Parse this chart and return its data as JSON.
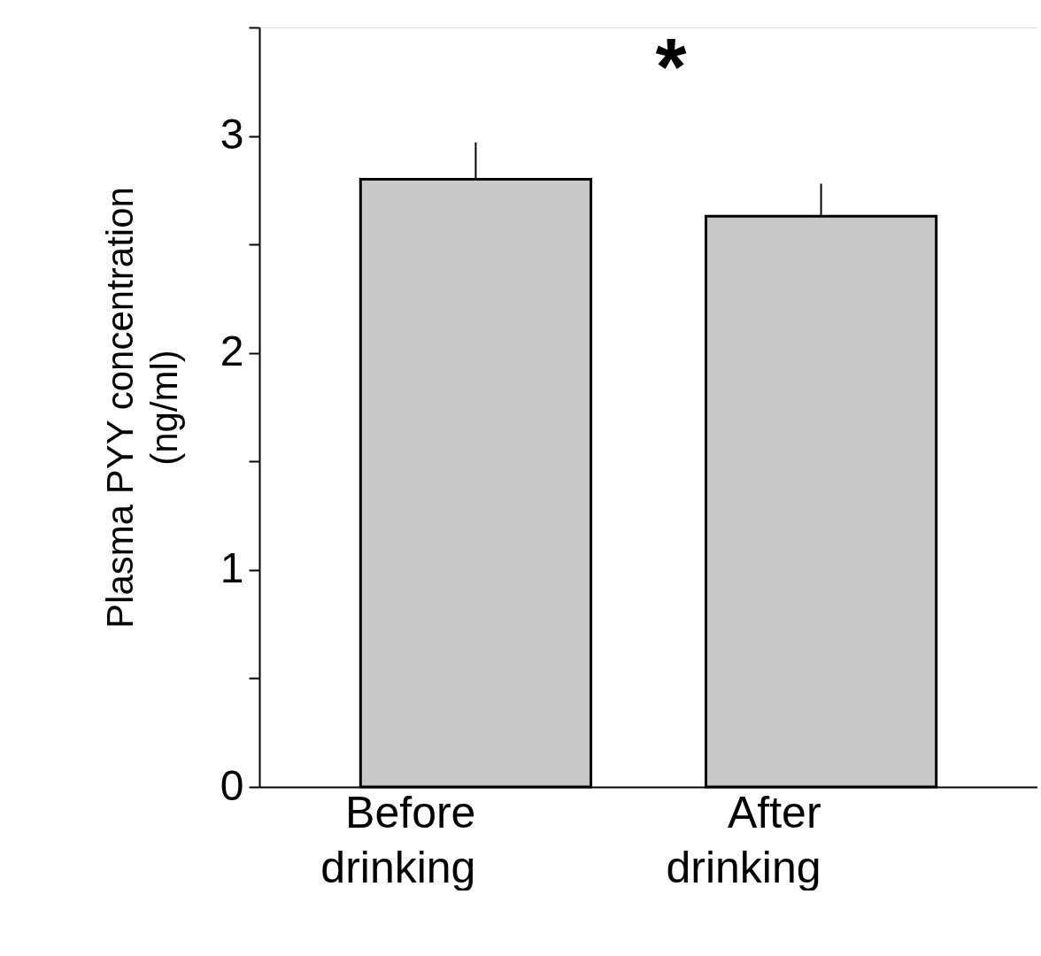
{
  "chart_data": {
    "type": "bar",
    "ylabel": "Plasma PYY concentration (ng/ml)",
    "categories": [
      "Before drinking",
      "After drinking"
    ],
    "values": [
      2.8,
      2.63
    ],
    "errors": [
      [
        2.8,
        2.97
      ],
      [
        2.63,
        2.78
      ]
    ],
    "color": "#c8c8c8",
    "ylim": [
      0,
      3.5
    ],
    "yticks": [
      0,
      {
        "value": 0.5,
        "label": null
      },
      1,
      {
        "value": 1.5,
        "label": null
      },
      2,
      {
        "value": 2.5,
        "label": null
      },
      3,
      {
        "value": 3.5,
        "label": null
      }
    ],
    "grid": false,
    "annotations": [
      "*"
    ]
  }
}
